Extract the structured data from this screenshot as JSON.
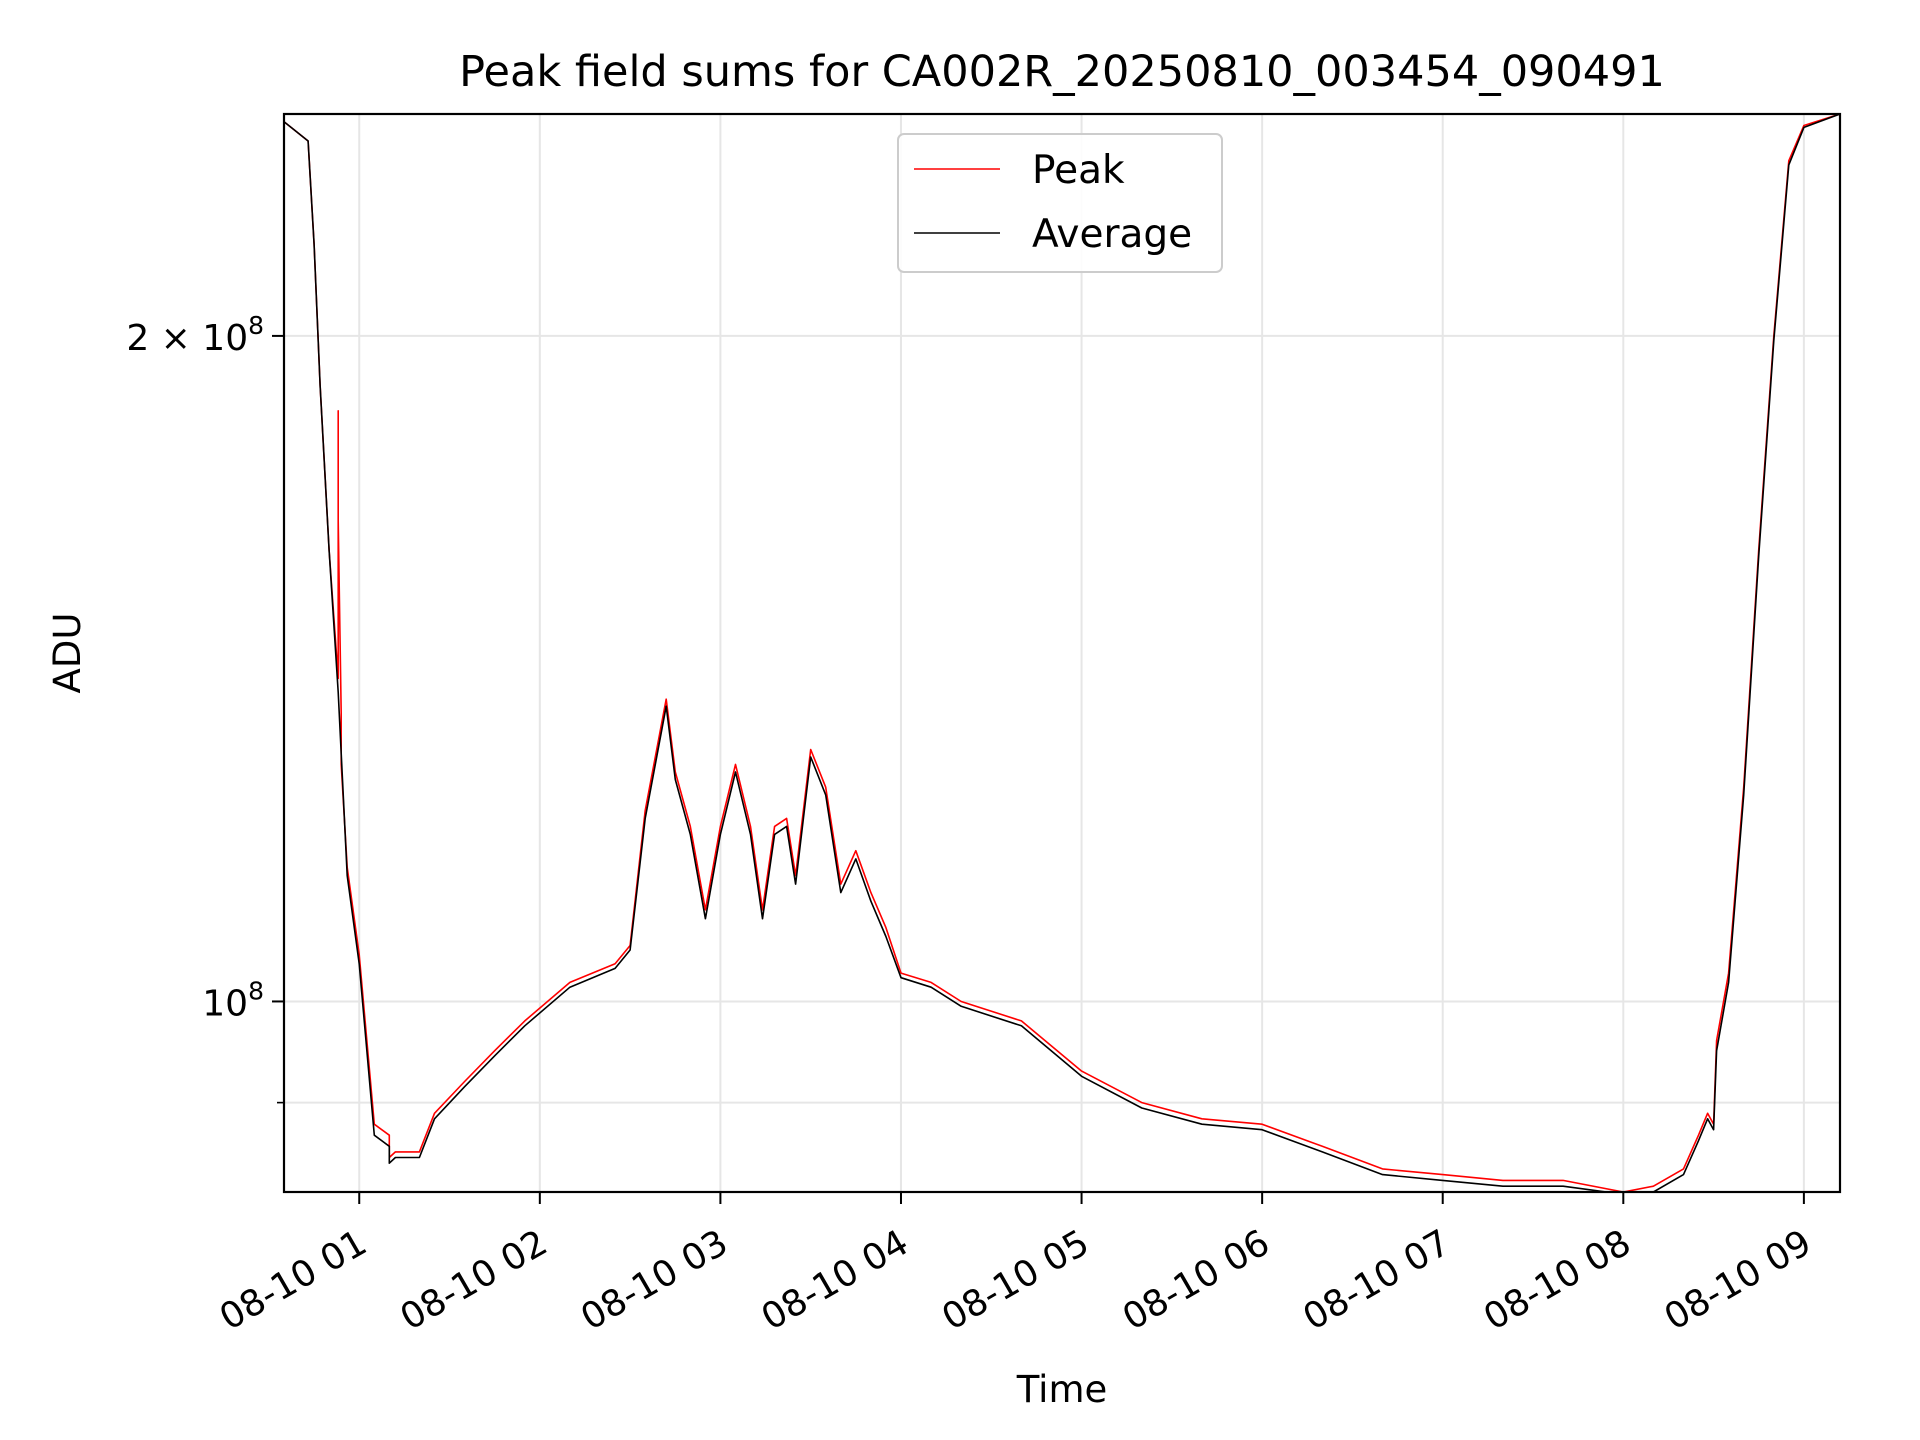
{
  "chart_data": {
    "type": "line",
    "title": "Peak field sums for CA002R_20250810_003454_090491",
    "xlabel": "Time",
    "ylabel": "ADU",
    "yscale": "log",
    "grid": true,
    "legend_position": "top-center",
    "xlim": [
      "2025-08-10 00:35",
      "2025-08-10 09:12"
    ],
    "ylim": [
      82000000,
      252000000
    ],
    "x_ticks": [
      {
        "value": "2025-08-10 01:00",
        "label": "08-10 01"
      },
      {
        "value": "2025-08-10 02:00",
        "label": "08-10 02"
      },
      {
        "value": "2025-08-10 03:00",
        "label": "08-10 03"
      },
      {
        "value": "2025-08-10 04:00",
        "label": "08-10 04"
      },
      {
        "value": "2025-08-10 05:00",
        "label": "08-10 05"
      },
      {
        "value": "2025-08-10 06:00",
        "label": "08-10 06"
      },
      {
        "value": "2025-08-10 07:00",
        "label": "08-10 07"
      },
      {
        "value": "2025-08-10 08:00",
        "label": "08-10 08"
      },
      {
        "value": "2025-08-10 09:00",
        "label": "08-10 09"
      }
    ],
    "y_major_ticks": [
      {
        "value": 100000000,
        "label_base": "10",
        "label_exp": "8",
        "label_coef": ""
      },
      {
        "value": 200000000,
        "label_base": "10",
        "label_exp": "8",
        "label_coef": "2 × "
      }
    ],
    "y_minor_ticks": [
      90000000
    ],
    "series": [
      {
        "name": "Peak",
        "color": "#ff0000",
        "x": [
          "2025-08-10 00:35",
          "2025-08-10 00:43",
          "2025-08-10 00:45",
          "2025-08-10 00:47",
          "2025-08-10 00:50",
          "2025-08-10 00:53",
          "2025-08-10 00:53",
          "2025-08-10 00:53",
          "2025-08-10 00:54",
          "2025-08-10 00:54",
          "2025-08-10 00:56",
          "2025-08-10 01:00",
          "2025-08-10 01:05",
          "2025-08-10 01:10",
          "2025-08-10 01:10",
          "2025-08-10 01:12",
          "2025-08-10 01:20",
          "2025-08-10 01:25",
          "2025-08-10 01:35",
          "2025-08-10 01:45",
          "2025-08-10 01:55",
          "2025-08-10 02:10",
          "2025-08-10 02:25",
          "2025-08-10 02:30",
          "2025-08-10 02:35",
          "2025-08-10 02:42",
          "2025-08-10 02:45",
          "2025-08-10 02:50",
          "2025-08-10 02:55",
          "2025-08-10 03:00",
          "2025-08-10 03:05",
          "2025-08-10 03:10",
          "2025-08-10 03:14",
          "2025-08-10 03:18",
          "2025-08-10 03:22",
          "2025-08-10 03:25",
          "2025-08-10 03:30",
          "2025-08-10 03:35",
          "2025-08-10 03:40",
          "2025-08-10 03:45",
          "2025-08-10 03:50",
          "2025-08-10 03:55",
          "2025-08-10 04:00",
          "2025-08-10 04:10",
          "2025-08-10 04:20",
          "2025-08-10 04:40",
          "2025-08-10 05:00",
          "2025-08-10 05:20",
          "2025-08-10 05:40",
          "2025-08-10 06:00",
          "2025-08-10 06:20",
          "2025-08-10 06:40",
          "2025-08-10 07:00",
          "2025-08-10 07:20",
          "2025-08-10 07:40",
          "2025-08-10 08:00",
          "2025-08-10 08:10",
          "2025-08-10 08:20",
          "2025-08-10 08:25",
          "2025-08-10 08:28",
          "2025-08-10 08:30",
          "2025-08-10 08:31",
          "2025-08-10 08:35",
          "2025-08-10 08:40",
          "2025-08-10 08:45",
          "2025-08-10 08:50",
          "2025-08-10 08:55",
          "2025-08-10 09:00",
          "2025-08-10 09:12"
        ],
        "values": [
          250000000,
          245000000,
          220000000,
          190000000,
          160000000,
          140000000,
          185000000,
          165000000,
          135000000,
          128000000,
          115000000,
          105000000,
          88000000,
          87000000,
          85000000,
          85500000,
          85500000,
          89000000,
          92000000,
          95000000,
          98000000,
          102000000,
          104000000,
          106000000,
          122000000,
          137000000,
          127000000,
          120000000,
          110000000,
          120000000,
          128000000,
          120000000,
          110000000,
          120000000,
          121000000,
          114000000,
          130000000,
          125000000,
          113000000,
          117000000,
          112000000,
          108000000,
          103000000,
          102000000,
          100000000,
          98000000,
          93000000,
          90000000,
          88500000,
          88000000,
          86000000,
          84000000,
          83500000,
          83000000,
          83000000,
          82000000,
          82500000,
          84000000,
          87000000,
          89000000,
          88000000,
          96000000,
          103000000,
          125000000,
          160000000,
          200000000,
          240000000,
          249000000,
          252000000
        ]
      },
      {
        "name": "Average",
        "color": "#000000",
        "x": [
          "2025-08-10 00:35",
          "2025-08-10 00:43",
          "2025-08-10 00:45",
          "2025-08-10 00:47",
          "2025-08-10 00:50",
          "2025-08-10 00:53",
          "2025-08-10 00:56",
          "2025-08-10 01:00",
          "2025-08-10 01:05",
          "2025-08-10 01:10",
          "2025-08-10 01:10",
          "2025-08-10 01:12",
          "2025-08-10 01:20",
          "2025-08-10 01:25",
          "2025-08-10 01:35",
          "2025-08-10 01:45",
          "2025-08-10 01:55",
          "2025-08-10 02:10",
          "2025-08-10 02:25",
          "2025-08-10 02:30",
          "2025-08-10 02:35",
          "2025-08-10 02:42",
          "2025-08-10 02:45",
          "2025-08-10 02:50",
          "2025-08-10 02:55",
          "2025-08-10 03:00",
          "2025-08-10 03:05",
          "2025-08-10 03:10",
          "2025-08-10 03:14",
          "2025-08-10 03:18",
          "2025-08-10 03:22",
          "2025-08-10 03:25",
          "2025-08-10 03:30",
          "2025-08-10 03:35",
          "2025-08-10 03:40",
          "2025-08-10 03:45",
          "2025-08-10 03:50",
          "2025-08-10 03:55",
          "2025-08-10 04:00",
          "2025-08-10 04:10",
          "2025-08-10 04:20",
          "2025-08-10 04:40",
          "2025-08-10 05:00",
          "2025-08-10 05:20",
          "2025-08-10 05:40",
          "2025-08-10 06:00",
          "2025-08-10 06:20",
          "2025-08-10 06:40",
          "2025-08-10 07:00",
          "2025-08-10 07:20",
          "2025-08-10 07:40",
          "2025-08-10 08:00",
          "2025-08-10 08:10",
          "2025-08-10 08:20",
          "2025-08-10 08:25",
          "2025-08-10 08:28",
          "2025-08-10 08:30",
          "2025-08-10 08:31",
          "2025-08-10 08:35",
          "2025-08-10 08:40",
          "2025-08-10 08:45",
          "2025-08-10 08:50",
          "2025-08-10 08:55",
          "2025-08-10 09:00",
          "2025-08-10 09:12"
        ],
        "values": [
          250000000,
          245000000,
          220000000,
          190000000,
          160000000,
          138000000,
          114000000,
          104000000,
          87000000,
          86000000,
          84500000,
          85000000,
          85000000,
          88500000,
          91500000,
          94500000,
          97500000,
          101500000,
          103500000,
          105500000,
          121000000,
          136000000,
          126000000,
          119000000,
          109000000,
          119000000,
          127000000,
          119000000,
          109000000,
          119000000,
          120000000,
          113000000,
          129000000,
          124000000,
          112000000,
          116000000,
          111000000,
          107000000,
          102500000,
          101500000,
          99500000,
          97500000,
          92500000,
          89500000,
          88000000,
          87500000,
          85500000,
          83500000,
          83000000,
          82500000,
          82500000,
          81800000,
          82000000,
          83500000,
          86500000,
          88500000,
          87500000,
          95000000,
          102000000,
          124000000,
          159000000,
          199000000,
          239000000,
          248500000,
          252000000
        ]
      }
    ]
  }
}
